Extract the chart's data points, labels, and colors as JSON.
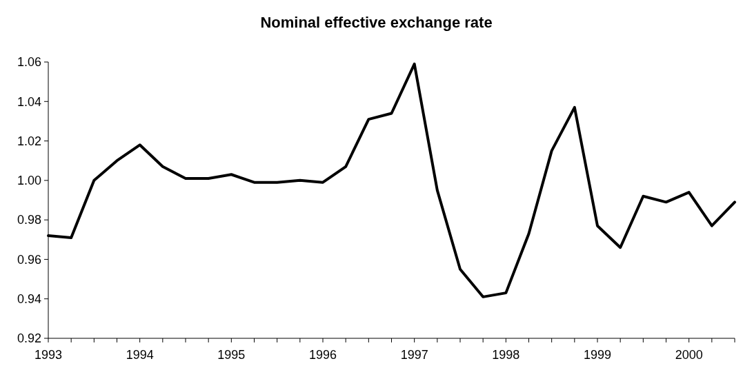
{
  "chart_data": {
    "type": "line",
    "title": "Nominal effective exchange rate",
    "x": [
      1993,
      1993.25,
      1993.5,
      1993.75,
      1994,
      1994.25,
      1994.5,
      1994.75,
      1995,
      1995.25,
      1995.5,
      1995.75,
      1996,
      1996.25,
      1996.5,
      1996.75,
      1997,
      1997.25,
      1997.5,
      1997.75,
      1998,
      1998.25,
      1998.5,
      1998.75,
      1999,
      1999.25,
      1999.5,
      1999.75,
      2000,
      2000.25,
      2000.5
    ],
    "series": [
      {
        "color": "#000000",
        "values": [
          0.972,
          0.971,
          1.0,
          1.01,
          1.018,
          1.007,
          1.001,
          1.001,
          1.003,
          0.999,
          0.999,
          1.0,
          0.999,
          1.007,
          1.031,
          1.034,
          1.059,
          0.995,
          0.955,
          0.941,
          0.943,
          0.973,
          1.015,
          1.037,
          0.977,
          0.966,
          0.992,
          0.989,
          0.994,
          0.977,
          0.989
        ]
      }
    ],
    "xlim": [
      1993,
      2000.5
    ],
    "xticks": [
      1993,
      {
        "value": 1993.25,
        "label": null
      },
      {
        "value": 1993.5,
        "label": null
      },
      {
        "value": 1993.75,
        "label": null
      },
      1994,
      {
        "value": 1994.25,
        "label": null
      },
      {
        "value": 1994.5,
        "label": null
      },
      {
        "value": 1994.75,
        "label": null
      },
      1995,
      {
        "value": 1995.25,
        "label": null
      },
      {
        "value": 1995.5,
        "label": null
      },
      {
        "value": 1995.75,
        "label": null
      },
      1996,
      {
        "value": 1996.25,
        "label": null
      },
      {
        "value": 1996.5,
        "label": null
      },
      {
        "value": 1996.75,
        "label": null
      },
      1997,
      {
        "value": 1997.25,
        "label": null
      },
      {
        "value": 1997.5,
        "label": null
      },
      {
        "value": 1997.75,
        "label": null
      },
      1998,
      {
        "value": 1998.25,
        "label": null
      },
      {
        "value": 1998.5,
        "label": null
      },
      {
        "value": 1998.75,
        "label": null
      },
      1999,
      {
        "value": 1999.25,
        "label": null
      },
      {
        "value": 1999.5,
        "label": null
      },
      {
        "value": 1999.75,
        "label": null
      },
      2000,
      {
        "value": 2000.25,
        "label": null
      },
      {
        "value": 2000.5,
        "label": null
      }
    ],
    "ylim": [
      0.92,
      1.06
    ],
    "yticks": [
      {
        "value": 0.92,
        "label": "0.92"
      },
      {
        "value": 0.94,
        "label": "0.94"
      },
      {
        "value": 0.96,
        "label": "0.96"
      },
      {
        "value": 0.98,
        "label": "0.98"
      },
      {
        "value": 1.0,
        "label": "1.00"
      },
      {
        "value": 1.02,
        "label": "1.02"
      },
      {
        "value": 1.04,
        "label": "1.04"
      },
      {
        "value": 1.06,
        "label": "1.06"
      }
    ],
    "grid": false,
    "marker": "none",
    "line_style": "solid"
  }
}
